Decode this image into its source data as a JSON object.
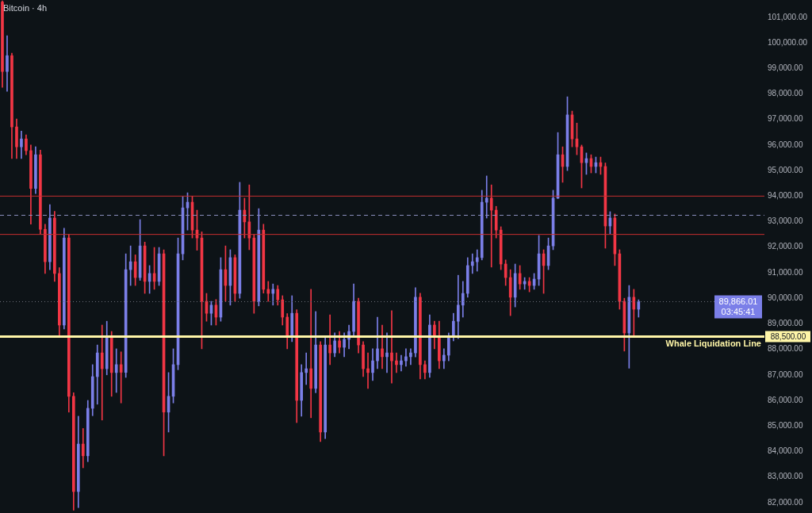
{
  "chart_data": {
    "type": "candlestick",
    "title": "Bitcoin · 4h",
    "categories": [
      null,
      null,
      null,
      null,
      null,
      null,
      null,
      null,
      null,
      null,
      null,
      null,
      null,
      null,
      null,
      null,
      null,
      null,
      null,
      null,
      null,
      null,
      null,
      null,
      null,
      null,
      null,
      null,
      null,
      null,
      null,
      null,
      null,
      null,
      null,
      null,
      null,
      null,
      null,
      null,
      null,
      null,
      null,
      null,
      null,
      null,
      null,
      null,
      null,
      null,
      null,
      null,
      null,
      null,
      null,
      null,
      null,
      null,
      null,
      null,
      null,
      null,
      null,
      null,
      null,
      null,
      null,
      null,
      null,
      null,
      null,
      null,
      null,
      null,
      null,
      null,
      null,
      null,
      null,
      null,
      null,
      null,
      null,
      null,
      null,
      null,
      null,
      null,
      null,
      null,
      null,
      null,
      null,
      null,
      null,
      null,
      null,
      null,
      null,
      null,
      null,
      null,
      null,
      null,
      null,
      null,
      null,
      null,
      null,
      null,
      null,
      null,
      null,
      null,
      null,
      null,
      null,
      null,
      null,
      null,
      null,
      null,
      null,
      null,
      null,
      null,
      null,
      null,
      null,
      null,
      null,
      null,
      null,
      null,
      null,
      null,
      null,
      null,
      null,
      null,
      null,
      null,
      null,
      null,
      null,
      null,
      null,
      null,
      null,
      null,
      null,
      null,
      null,
      null,
      null,
      null,
      null,
      null,
      null,
      null,
      null
    ],
    "ohlc": [
      [
        101600,
        101650,
        98260,
        98880
      ],
      [
        98880,
        100280,
        98100,
        99500
      ],
      [
        99500,
        99600,
        95470,
        96710
      ],
      [
        96710,
        97020,
        95470,
        95930
      ],
      [
        95930,
        96550,
        95470,
        96240
      ],
      [
        96240,
        96400,
        95620,
        95780
      ],
      [
        95780,
        96000,
        92900,
        94300
      ],
      [
        94300,
        95930,
        94100,
        95620
      ],
      [
        95620,
        95800,
        92500,
        92700
      ],
      [
        92700,
        92900,
        90970,
        91430
      ],
      [
        91430,
        93670,
        91120,
        93140
      ],
      [
        93140,
        93400,
        90660,
        90970
      ],
      [
        90970,
        91200,
        88480,
        88950
      ],
      [
        88950,
        92740,
        88800,
        92360
      ],
      [
        92360,
        92500,
        85540,
        86160
      ],
      [
        86160,
        86300,
        81700,
        82430
      ],
      [
        82430,
        85380,
        81800,
        84290
      ],
      [
        84290,
        84900,
        83360,
        83830
      ],
      [
        83830,
        86000,
        83600,
        85690
      ],
      [
        85690,
        87400,
        85400,
        86930
      ],
      [
        86930,
        88170,
        85850,
        87860
      ],
      [
        87860,
        88950,
        85230,
        87240
      ],
      [
        87240,
        89100,
        87000,
        88480
      ],
      [
        88480,
        88700,
        86160,
        87090
      ],
      [
        87090,
        88020,
        86310,
        87400
      ],
      [
        87400,
        87900,
        85900,
        87100
      ],
      [
        87100,
        91740,
        86900,
        91120
      ],
      [
        91120,
        92050,
        90500,
        91430
      ],
      [
        91430,
        91700,
        90500,
        90810
      ],
      [
        90810,
        93080,
        90700,
        92050
      ],
      [
        92050,
        92200,
        90190,
        90660
      ],
      [
        90660,
        91280,
        90190,
        90970
      ],
      [
        90970,
        91990,
        90350,
        90660
      ],
      [
        90660,
        91990,
        90500,
        91740
      ],
      [
        91740,
        91900,
        83830,
        85540
      ],
      [
        85540,
        87090,
        84760,
        86160
      ],
      [
        86160,
        88020,
        85900,
        87400
      ],
      [
        87400,
        92360,
        87200,
        91740
      ],
      [
        91740,
        93980,
        91500,
        93540
      ],
      [
        93540,
        94130,
        92670,
        93760
      ],
      [
        93760,
        94000,
        92360,
        92670
      ],
      [
        92670,
        93450,
        91880,
        92360
      ],
      [
        92360,
        92600,
        88020,
        89880
      ],
      [
        89880,
        90190,
        89100,
        89410
      ],
      [
        89410,
        89880,
        88950,
        89730
      ],
      [
        89730,
        89950,
        88950,
        89260
      ],
      [
        89260,
        91590,
        89100,
        91120
      ],
      [
        91120,
        92050,
        89880,
        90500
      ],
      [
        90500,
        91900,
        89730,
        91590
      ],
      [
        91590,
        91700,
        89880,
        90190
      ],
      [
        90190,
        94540,
        90000,
        93450
      ],
      [
        93450,
        93920,
        92360,
        92990
      ],
      [
        92990,
        94440,
        91900,
        92360
      ],
      [
        92360,
        92500,
        89410,
        89880
      ],
      [
        89880,
        93510,
        89700,
        92670
      ],
      [
        92670,
        92900,
        90200,
        90350
      ],
      [
        90350,
        90660,
        89880,
        90190
      ],
      [
        90190,
        90560,
        89730,
        90350
      ],
      [
        90350,
        90500,
        89730,
        89940
      ],
      [
        89940,
        90100,
        88950,
        89260
      ],
      [
        89260,
        89400,
        88020,
        88490
      ],
      [
        88490,
        90100,
        88300,
        89410
      ],
      [
        89410,
        89550,
        85130,
        86000
      ],
      [
        86000,
        87400,
        85380,
        87090
      ],
      [
        87090,
        87860,
        86620,
        87240
      ],
      [
        87240,
        90350,
        85320,
        86470
      ],
      [
        86470,
        89480,
        86300,
        88170
      ],
      [
        88170,
        88300,
        84390,
        84760
      ],
      [
        84760,
        88480,
        84500,
        88170
      ],
      [
        88170,
        89350,
        87400,
        87860
      ],
      [
        87860,
        88640,
        87710,
        88330
      ],
      [
        88330,
        88700,
        87860,
        88080
      ],
      [
        88080,
        88640,
        87710,
        88390
      ],
      [
        88390,
        88950,
        88020,
        88700
      ],
      [
        88700,
        90560,
        88500,
        89880
      ],
      [
        89880,
        90000,
        87860,
        88170
      ],
      [
        88170,
        88300,
        86930,
        87240
      ],
      [
        87240,
        87860,
        86470,
        87090
      ],
      [
        87090,
        88020,
        86780,
        87550
      ],
      [
        87550,
        89260,
        87240,
        88020
      ],
      [
        88020,
        88950,
        87240,
        87710
      ],
      [
        87710,
        88640,
        87090,
        87860
      ],
      [
        87860,
        89510,
        86680,
        87550
      ],
      [
        87550,
        87860,
        87090,
        87400
      ],
      [
        87400,
        87770,
        87150,
        87550
      ],
      [
        87550,
        88020,
        87340,
        87710
      ],
      [
        87710,
        88020,
        87400,
        87860
      ],
      [
        87860,
        90410,
        87700,
        90040
      ],
      [
        90040,
        90200,
        86840,
        87400
      ],
      [
        87400,
        87550,
        86840,
        87090
      ],
      [
        87090,
        89350,
        86900,
        88950
      ],
      [
        88950,
        89100,
        88020,
        88490
      ],
      [
        88490,
        89100,
        87240,
        87550
      ],
      [
        87550,
        88020,
        87240,
        87770
      ],
      [
        87770,
        88640,
        87550,
        88490
      ],
      [
        88490,
        89410,
        88330,
        89100
      ],
      [
        89100,
        90900,
        88420,
        89730
      ],
      [
        89730,
        90660,
        89260,
        90190
      ],
      [
        90190,
        91590,
        90040,
        91280
      ],
      [
        91280,
        91740,
        90970,
        91430
      ],
      [
        91430,
        91900,
        91060,
        91590
      ],
      [
        91590,
        94230,
        91500,
        93760
      ],
      [
        93760,
        94790,
        93140,
        93920
      ],
      [
        93920,
        94440,
        91220,
        93450
      ],
      [
        93450,
        93600,
        92360,
        92670
      ],
      [
        92670,
        92800,
        91120,
        91340
      ],
      [
        91340,
        91500,
        90500,
        90810
      ],
      [
        90810,
        91120,
        89320,
        90040
      ],
      [
        90040,
        91340,
        89660,
        90970
      ],
      [
        90970,
        91280,
        90350,
        90560
      ],
      [
        90560,
        90810,
        90350,
        90660
      ],
      [
        90660,
        90810,
        90250,
        90500
      ],
      [
        90500,
        90970,
        90350,
        90750
      ],
      [
        90750,
        92460,
        90500,
        91740
      ],
      [
        91740,
        91900,
        90190,
        91280
      ],
      [
        91280,
        92360,
        91120,
        92050
      ],
      [
        92050,
        94230,
        91900,
        93920
      ],
      [
        93920,
        96490,
        93900,
        95620
      ],
      [
        95620,
        95930,
        94540,
        95160
      ],
      [
        95160,
        97890,
        95000,
        97180
      ],
      [
        97180,
        97330,
        95930,
        96240
      ],
      [
        96240,
        96860,
        95620,
        95930
      ],
      [
        95930,
        96000,
        94320,
        95310
      ],
      [
        95310,
        95690,
        94850,
        95470
      ],
      [
        95470,
        95620,
        94910,
        95160
      ],
      [
        95160,
        95530,
        94910,
        95310
      ],
      [
        95310,
        95530,
        94850,
        95160
      ],
      [
        95160,
        95300,
        91960,
        92830
      ],
      [
        92830,
        93390,
        92520,
        93140
      ],
      [
        93140,
        93300,
        91280,
        91740
      ],
      [
        91740,
        91900,
        89570,
        89880
      ],
      [
        89880,
        90000,
        87930,
        88640
      ],
      [
        88640,
        90500,
        87260,
        90040
      ],
      [
        90040,
        90350,
        88550,
        89570
      ],
      [
        89570,
        89940,
        89260,
        89870
      ],
      null,
      null,
      null,
      null,
      null,
      null,
      null,
      null,
      null,
      null,
      null,
      null,
      null,
      null,
      null,
      null,
      null,
      null,
      null,
      null,
      null,
      null,
      null,
      null,
      null,
      null
    ],
    "colors": [
      "#f23645",
      "#7b7fe8",
      "#f23645",
      "#f23645",
      "#7b7fe8",
      "#f23645",
      "#f23645",
      "#7b7fe8",
      "#f23645",
      "#f23645",
      "#7b7fe8",
      "#f23645",
      "#f23645",
      "#7b7fe8",
      "#f23645",
      "#f23645",
      "#7b7fe8",
      "#f23645",
      "#7b7fe8",
      "#7b7fe8",
      "#7b7fe8",
      "#f23645",
      "#7b7fe8",
      "#f23645",
      "#7b7fe8",
      "#f23645",
      "#7b7fe8",
      "#7b7fe8",
      "#f23645",
      "#7b7fe8",
      "#f23645",
      "#7b7fe8",
      "#f23645",
      "#7b7fe8",
      "#f23645",
      "#7b7fe8",
      "#7b7fe8",
      "#7b7fe8",
      "#7b7fe8",
      "#7b7fe8",
      "#f23645",
      "#f23645",
      "#f23645",
      "#f23645",
      "#7b7fe8",
      "#f23645",
      "#7b7fe8",
      "#f23645",
      "#7b7fe8",
      "#f23645",
      "#7b7fe8",
      "#f23645",
      "#f23645",
      "#f23645",
      "#7b7fe8",
      "#f23645",
      "#f23645",
      "#7b7fe8",
      "#f23645",
      "#f23645",
      "#f23645",
      "#7b7fe8",
      "#f23645",
      "#7b7fe8",
      "#7b7fe8",
      "#f23645",
      "#7b7fe8",
      "#f23645",
      "#7b7fe8",
      "#f23645",
      "#7b7fe8",
      "#f23645",
      "#7b7fe8",
      "#7b7fe8",
      "#7b7fe8",
      "#f23645",
      "#f23645",
      "#f23645",
      "#7b7fe8",
      "#7b7fe8",
      "#f23645",
      "#7b7fe8",
      "#f23645",
      "#f23645",
      "#7b7fe8",
      "#7b7fe8",
      "#7b7fe8",
      "#7b7fe8",
      "#f23645",
      "#f23645",
      "#7b7fe8",
      "#f23645",
      "#f23645",
      "#7b7fe8",
      "#7b7fe8",
      "#7b7fe8",
      "#7b7fe8",
      "#7b7fe8",
      "#7b7fe8",
      "#7b7fe8",
      "#7b7fe8",
      "#7b7fe8",
      "#7b7fe8",
      "#f23645",
      "#f23645",
      "#f23645",
      "#f23645",
      "#f23645",
      "#7b7fe8",
      "#f23645",
      "#7b7fe8",
      "#f23645",
      "#7b7fe8",
      "#7b7fe8",
      "#f23645",
      "#7b7fe8",
      "#7b7fe8",
      "#7b7fe8",
      "#f23645",
      "#7b7fe8",
      "#f23645",
      "#f23645",
      "#f23645",
      "#7b7fe8",
      "#f23645",
      "#7b7fe8",
      "#f23645",
      "#f23645",
      "#7b7fe8",
      "#f23645",
      "#f23645",
      "#f23645",
      "#7b7fe8",
      "#f23645",
      "#7b7fe8",
      null,
      null,
      null,
      null,
      null,
      null,
      null,
      null,
      null,
      null,
      null,
      null,
      null,
      null,
      null,
      null,
      null,
      null,
      null,
      null,
      null,
      null,
      null,
      null,
      null,
      null
    ],
    "ylim": [
      81590,
      101680
    ],
    "yticks": [
      {
        "value": 82000,
        "label": "82,000.00"
      },
      {
        "value": 83000,
        "label": "83,000.00"
      },
      {
        "value": 84000,
        "label": "84,000.00"
      },
      {
        "value": 85000,
        "label": "85,000.00"
      },
      {
        "value": 86000,
        "label": "86,000.00"
      },
      {
        "value": 87000,
        "label": "87,000.00"
      },
      {
        "value": 88000,
        "label": "88,000.00"
      },
      {
        "value": 89000,
        "label": "89,000.00"
      },
      {
        "value": 90000,
        "label": "90,000.00"
      },
      {
        "value": 91000,
        "label": "91,000.00"
      },
      {
        "value": 92000,
        "label": "92,000.00"
      },
      {
        "value": 93000,
        "label": "93,000.00"
      },
      {
        "value": 94000,
        "label": "94,000.00"
      },
      {
        "value": 95000,
        "label": "95,000.00"
      },
      {
        "value": 96000,
        "label": "96,000.00"
      },
      {
        "value": 97000,
        "label": "97,000.00"
      },
      {
        "value": 98000,
        "label": "98,000.00"
      },
      {
        "value": 99000,
        "label": "99,000.00"
      },
      {
        "value": 100000,
        "label": "100,000.00"
      },
      {
        "value": 101000,
        "label": "101,000.00"
      }
    ],
    "tick_labels": "y",
    "ref_lines": [
      {
        "axis": "y",
        "value": 94000,
        "color": "#c62f2f"
      },
      {
        "axis": "y",
        "value": 92500,
        "color": "#c62f2f"
      },
      {
        "axis": "y",
        "value": 93250,
        "color": "#8a8dbd",
        "line_style": "dashed"
      },
      {
        "axis": "y",
        "value": 89866.01,
        "label": "89,866.01",
        "color": "#6b6f7a",
        "line_style": "dotted"
      },
      {
        "axis": "y",
        "value": 88500,
        "label": "88,500.00",
        "color": "#fff6a8"
      }
    ],
    "annotations": [
      {
        "text": "03:45:41",
        "y": 89866.01
      },
      {
        "text": "Whale Liquidation Line",
        "y": 88500
      }
    ]
  }
}
